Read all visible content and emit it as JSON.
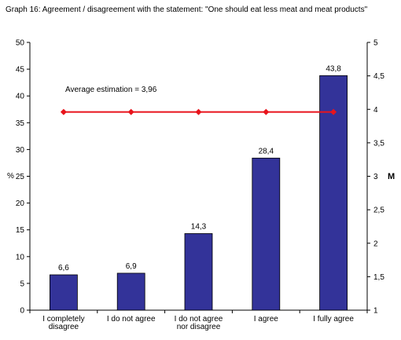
{
  "chart_data": {
    "type": "bar",
    "title": "Graph 16: Agreement / disagreement with the statement: \"One should eat less meat and meat products\"",
    "categories": [
      [
        "I completely",
        "disagree"
      ],
      [
        "I do not agree"
      ],
      [
        "I do not agree",
        "nor disagree"
      ],
      [
        "I agree"
      ],
      [
        "I fully agree"
      ]
    ],
    "series": [
      {
        "values": [
          6.6,
          6.9,
          14.3,
          28.4,
          43.8
        ],
        "labels": [
          "6,6",
          "6,9",
          "14,3",
          "28,4",
          "43,8"
        ],
        "color": "#333399"
      }
    ],
    "average_line": {
      "label": "Average estimation = 3,96",
      "value": 3.96,
      "color": "#e8141c"
    },
    "ylabel": "%",
    "y2label": "M",
    "ylim": [
      0,
      50
    ],
    "y2lim": [
      1,
      5
    ],
    "yticks": [
      "0",
      "5",
      "10",
      "15",
      "20",
      "25",
      "30",
      "35",
      "40",
      "45",
      "50"
    ],
    "y2ticks": [
      "1",
      "1,5",
      "2",
      "2,5",
      "3",
      "3,5",
      "4",
      "4,5",
      "5"
    ],
    "grid": false,
    "legend": "none"
  }
}
